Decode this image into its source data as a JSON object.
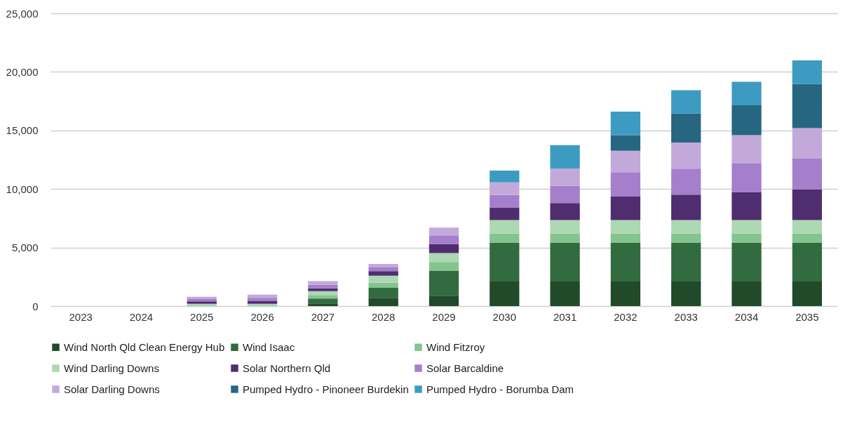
{
  "chart_data": {
    "type": "bar",
    "stacked": true,
    "categories": [
      "2023",
      "2024",
      "2025",
      "2026",
      "2027",
      "2028",
      "2029",
      "2030",
      "2031",
      "2032",
      "2033",
      "2034",
      "2035"
    ],
    "series": [
      {
        "name": "Wind North Qld Clean Energy Hub",
        "color": "#204a29",
        "values": [
          0,
          0,
          0,
          0,
          220,
          700,
          890,
          2100,
          2100,
          2100,
          2100,
          2100,
          2100
        ]
      },
      {
        "name": "Wind  Isaac",
        "color": "#326b3f",
        "values": [
          0,
          0,
          0,
          0,
          430,
          860,
          2140,
          3300,
          3300,
          3300,
          3300,
          3300,
          3300
        ]
      },
      {
        "name": "Wind  Fitzroy",
        "color": "#84c48f",
        "values": [
          0,
          0,
          50,
          50,
          300,
          430,
          730,
          800,
          800,
          800,
          800,
          800,
          800
        ]
      },
      {
        "name": "Wind Darling Downs",
        "color": "#acd8b3",
        "values": [
          0,
          0,
          150,
          150,
          320,
          600,
          760,
          1150,
          1150,
          1150,
          1150,
          1150,
          1150
        ]
      },
      {
        "name": "Solar Northern Qld",
        "color": "#4f2d6f",
        "values": [
          0,
          0,
          200,
          250,
          240,
          400,
          780,
          1080,
          1450,
          2000,
          2160,
          2390,
          2610
        ]
      },
      {
        "name": "Solar Barcaldine",
        "color": "#a57fcb",
        "values": [
          0,
          0,
          200,
          250,
          300,
          300,
          700,
          1060,
          1470,
          2080,
          2220,
          2470,
          2630
        ]
      },
      {
        "name": "Solar Darling Downs",
        "color": "#c3a9da",
        "values": [
          0,
          0,
          200,
          270,
          320,
          300,
          700,
          1080,
          1470,
          1840,
          2240,
          2390,
          2610
        ]
      },
      {
        "name": "Pumped Hydro - Pinoneer Burdekin",
        "color": "#276680",
        "values": [
          0,
          0,
          0,
          0,
          0,
          0,
          0,
          0,
          0,
          1330,
          2470,
          2550,
          3780
        ]
      },
      {
        "name": "Pumped Hydro - Borumba Dam",
        "color": "#3d9bc2",
        "values": [
          0,
          0,
          0,
          0,
          0,
          0,
          0,
          1000,
          2000,
          2000,
          2000,
          2000,
          2000
        ]
      }
    ],
    "ylim": [
      0,
      25000
    ],
    "yticks": [
      0,
      {
        "value": 5000,
        "label": "5,000"
      },
      {
        "value": 10000,
        "label": "10,000"
      },
      {
        "value": 15000,
        "label": "15,000"
      },
      {
        "value": 20000,
        "label": "20,000"
      },
      {
        "value": 25000,
        "label": "25,000"
      }
    ],
    "grid": "y",
    "legend": "bottom"
  }
}
